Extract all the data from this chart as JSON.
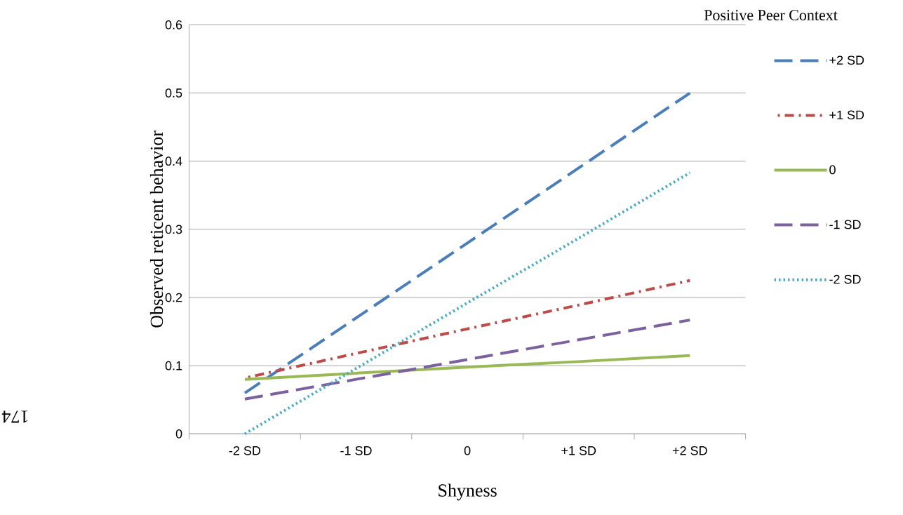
{
  "chart_data": {
    "type": "line",
    "xlabel": "Shyness",
    "ylabel": "Observed reticent behavior",
    "legend_title": "Positive Peer Context",
    "categories": [
      "-2 SD",
      "-1 SD",
      "0",
      "+1 SD",
      "+2 SD"
    ],
    "series": [
      {
        "name": "+2 SD",
        "color": "#4a7ebb",
        "line_style": "dashed",
        "values": [
          0.06,
          0.17,
          0.28,
          0.39,
          0.5
        ]
      },
      {
        "name": "+1 SD",
        "color": "#be4b48",
        "line_style": "dashdot",
        "values": [
          0.082,
          0.118,
          0.154,
          0.189,
          0.225
        ]
      },
      {
        "name": "0",
        "color": "#98b954",
        "line_style": "solid",
        "values": [
          0.08,
          0.089,
          0.098,
          0.106,
          0.115
        ]
      },
      {
        "name": "-1 SD",
        "color": "#7d60a0",
        "line_style": "dashed",
        "values": [
          0.051,
          0.08,
          0.109,
          0.138,
          0.167
        ]
      },
      {
        "name": "-2 SD",
        "color": "#46aac5",
        "line_style": "dotted",
        "values": [
          0.0,
          0.096,
          0.192,
          0.287,
          0.383
        ]
      }
    ],
    "ylim": [
      0,
      0.6
    ],
    "yticks": [
      0,
      0.1,
      0.2,
      0.3,
      0.4,
      0.5,
      0.6
    ],
    "grid": "y",
    "legend": "right",
    "marker": "none",
    "annotations": [
      "174"
    ]
  }
}
